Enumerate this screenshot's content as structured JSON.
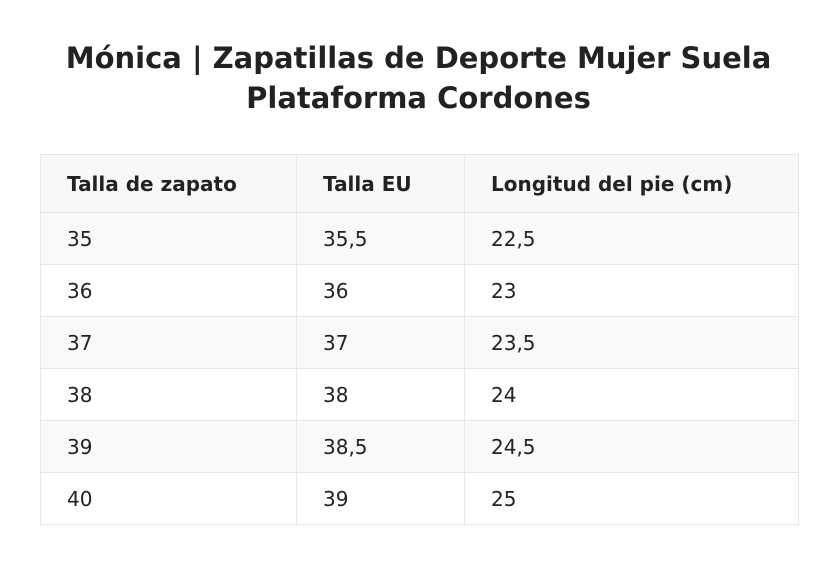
{
  "title": "Mónica | Zapatillas de Deporte Mujer Suela Plataforma Cordones",
  "table": {
    "headers": [
      "Talla de zapato",
      "Talla EU",
      "Longitud del pie (cm)"
    ],
    "rows": [
      [
        "35",
        "35,5",
        "22,5"
      ],
      [
        "36",
        "36",
        "23"
      ],
      [
        "37",
        "37",
        "23,5"
      ],
      [
        "38",
        "38",
        "24"
      ],
      [
        "39",
        "38,5",
        "24,5"
      ],
      [
        "40",
        "39",
        "25"
      ]
    ]
  }
}
